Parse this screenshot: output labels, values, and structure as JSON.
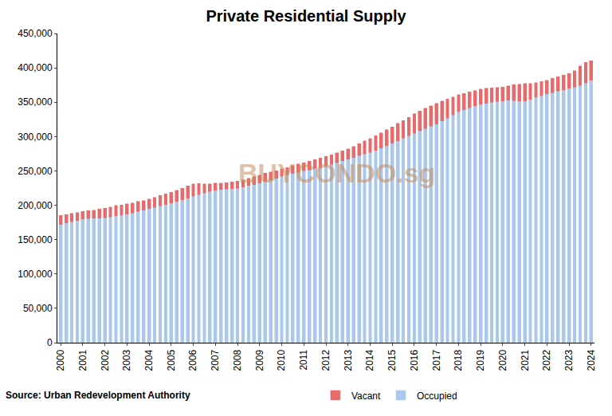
{
  "chart_data": {
    "type": "bar",
    "title": "Private Residential Supply",
    "annotations": [
      "Source: Urban Redevelopment Authority",
      "BUYCONDO.sg"
    ],
    "categories": [
      "2000",
      null,
      null,
      null,
      "2001",
      null,
      null,
      null,
      "2002",
      null,
      null,
      null,
      "2003",
      null,
      null,
      null,
      "2004",
      null,
      null,
      null,
      "2005",
      null,
      null,
      null,
      "2006",
      null,
      null,
      null,
      "2007",
      null,
      null,
      null,
      "2008",
      null,
      null,
      null,
      "2009",
      null,
      null,
      null,
      "2010",
      null,
      null,
      null,
      "2011",
      null,
      null,
      null,
      "2012",
      null,
      null,
      null,
      "2013",
      null,
      null,
      null,
      "2014",
      null,
      null,
      null,
      "2015",
      null,
      null,
      null,
      "2016",
      null,
      null,
      null,
      "2017",
      null,
      null,
      null,
      "2018",
      null,
      null,
      null,
      "2019",
      null,
      null,
      null,
      "2020",
      null,
      null,
      null,
      "2021",
      null,
      null,
      null,
      "2022",
      null,
      null,
      null,
      "2023",
      null,
      null,
      null,
      "2024"
    ],
    "series": [
      {
        "name": "Occupied",
        "color": "#a9c8ec",
        "values": [
          172000,
          174000,
          176000,
          178000,
          180000,
          180500,
          181000,
          181500,
          182000,
          183000,
          184500,
          185500,
          187000,
          189000,
          191000,
          193000,
          195000,
          197000,
          199000,
          201000,
          203000,
          205500,
          208000,
          210500,
          213000,
          215500,
          218000,
          220000,
          222000,
          223000,
          223500,
          224000,
          225000,
          226500,
          228500,
          230000,
          232000,
          234500,
          237000,
          239500,
          242000,
          244000,
          246000,
          248000,
          250000,
          251500,
          253500,
          255000,
          257000,
          259500,
          262000,
          264500,
          267000,
          269500,
          272000,
          274500,
          277000,
          280000,
          283500,
          287000,
          290000,
          294000,
          297500,
          301000,
          305000,
          308500,
          311500,
          315000,
          318000,
          322500,
          327000,
          331500,
          336000,
          339000,
          342000,
          344500,
          347000,
          348500,
          350000,
          351000,
          352000,
          353000,
          352500,
          352000,
          352000,
          354000,
          357000,
          359500,
          362000,
          364000,
          366000,
          368000,
          370000,
          372000,
          374500,
          378000,
          382000
        ]
      },
      {
        "name": "Vacant",
        "color": "#e86a6a",
        "values": [
          13000,
          12500,
          12000,
          11500,
          11000,
          11500,
          12000,
          13000,
          14000,
          14500,
          15000,
          15000,
          15000,
          14500,
          14500,
          14000,
          14000,
          14500,
          15000,
          15500,
          16000,
          16500,
          17000,
          17500,
          18000,
          16000,
          13000,
          11000,
          10000,
          9500,
          9500,
          10000,
          10000,
          10500,
          11000,
          11500,
          12000,
          12000,
          11500,
          11000,
          11000,
          11000,
          11500,
          12000,
          12000,
          12500,
          13000,
          13500,
          14000,
          14000,
          14500,
          15000,
          15000,
          16000,
          17500,
          19000,
          20000,
          21000,
          22000,
          23000,
          24000,
          25000,
          26000,
          27000,
          28000,
          29000,
          30000,
          30000,
          30000,
          29000,
          27500,
          26000,
          25000,
          24000,
          23000,
          22500,
          22000,
          21500,
          21000,
          20500,
          20000,
          21000,
          23000,
          24000,
          25000,
          23000,
          21500,
          20500,
          20000,
          20500,
          21000,
          21500,
          22000,
          24000,
          28000,
          30000,
          28000
        ]
      }
    ],
    "stacked": true,
    "ylim": [
      0,
      450000
    ],
    "yticks": [
      0,
      {
        "value": 50000,
        "label": "50,000"
      },
      {
        "value": 100000,
        "label": "100,000"
      },
      {
        "value": 150000,
        "label": "150,000"
      },
      {
        "value": 200000,
        "label": "200,000"
      },
      {
        "value": 250000,
        "label": "250,000"
      },
      {
        "value": 300000,
        "label": "300,000"
      },
      {
        "value": 350000,
        "label": "350,000"
      },
      {
        "value": 400000,
        "label": "400,000"
      },
      {
        "value": 450000,
        "label": "450,000"
      }
    ],
    "grid": false,
    "legend": "bottom"
  }
}
